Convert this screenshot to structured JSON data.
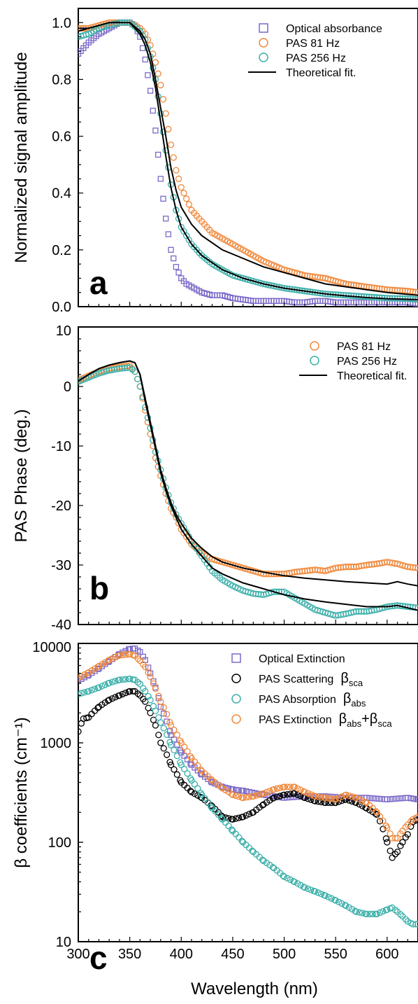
{
  "chart_data": [
    {
      "panel": "a",
      "type": "line",
      "ylabel": "Normalized signal amplitude",
      "xlim": [
        300,
        630
      ],
      "ylim": [
        0,
        1.05
      ],
      "yticks": [
        "0.0",
        "0.2",
        "0.4",
        "0.6",
        "0.8",
        "1.0"
      ],
      "legend": "top-right",
      "series": [
        {
          "name": "Optical absorbance",
          "marker": "square",
          "color": "#7b68c8",
          "x": [
            300,
            310,
            320,
            330,
            340,
            350,
            355,
            360,
            365,
            370,
            375,
            380,
            385,
            390,
            395,
            400,
            405,
            410,
            415,
            420,
            430,
            440,
            450,
            460,
            470,
            480,
            490,
            500,
            510,
            520,
            530,
            540,
            550,
            560,
            570,
            580,
            590,
            600,
            610,
            620,
            630
          ],
          "y": [
            0.89,
            0.93,
            0.96,
            0.98,
            1.0,
            1.0,
            0.99,
            0.95,
            0.87,
            0.76,
            0.62,
            0.45,
            0.31,
            0.2,
            0.14,
            0.1,
            0.08,
            0.07,
            0.06,
            0.05,
            0.04,
            0.04,
            0.03,
            0.025,
            0.02,
            0.02,
            0.02,
            0.02,
            0.015,
            0.015,
            0.02,
            0.02,
            0.015,
            0.015,
            0.015,
            0.015,
            0.015,
            0.015,
            0.015,
            0.015,
            0.01
          ]
        },
        {
          "name": "PAS   81 Hz",
          "marker": "circle",
          "color": "#f0883a",
          "x": [
            300,
            310,
            320,
            330,
            340,
            350,
            360,
            365,
            370,
            375,
            380,
            385,
            390,
            395,
            400,
            410,
            420,
            430,
            440,
            450,
            460,
            480,
            500,
            520,
            540,
            560,
            580,
            600,
            620,
            630
          ],
          "y": [
            0.98,
            0.98,
            0.99,
            1.0,
            1.0,
            1.0,
            0.98,
            0.96,
            0.92,
            0.86,
            0.78,
            0.68,
            0.57,
            0.48,
            0.42,
            0.34,
            0.3,
            0.26,
            0.24,
            0.22,
            0.2,
            0.16,
            0.13,
            0.11,
            0.1,
            0.08,
            0.07,
            0.06,
            0.055,
            0.05
          ]
        },
        {
          "name": "PAS 256 Hz",
          "marker": "circle",
          "color": "#3aafa9",
          "x": [
            300,
            310,
            320,
            330,
            340,
            350,
            360,
            365,
            370,
            375,
            380,
            385,
            390,
            395,
            400,
            410,
            420,
            430,
            440,
            450,
            460,
            480,
            500,
            520,
            540,
            560,
            580,
            600,
            620,
            630
          ],
          "y": [
            0.95,
            0.96,
            0.98,
            0.99,
            1.0,
            1.0,
            0.97,
            0.94,
            0.88,
            0.8,
            0.68,
            0.55,
            0.43,
            0.34,
            0.28,
            0.22,
            0.18,
            0.15,
            0.13,
            0.11,
            0.1,
            0.08,
            0.065,
            0.055,
            0.045,
            0.04,
            0.035,
            0.03,
            0.028,
            0.025
          ]
        },
        {
          "name": "Theoretical fit.",
          "marker": "line",
          "color": "#000000",
          "x": [
            300,
            310,
            320,
            330,
            340,
            350,
            360,
            365,
            370,
            375,
            380,
            385,
            390,
            395,
            400,
            410,
            420,
            440,
            460,
            480,
            500,
            520,
            540,
            560,
            580,
            600,
            630
          ],
          "y": [
            0.98,
            0.98,
            0.99,
            1.0,
            1.0,
            1.0,
            0.97,
            0.94,
            0.89,
            0.8,
            0.7,
            0.6,
            0.49,
            0.41,
            0.35,
            0.29,
            0.25,
            0.2,
            0.17,
            0.14,
            0.12,
            0.1,
            0.08,
            0.07,
            0.06,
            0.05,
            0.04
          ]
        },
        {
          "name": "",
          "marker": "line",
          "color": "#000000",
          "x": [
            300,
            310,
            320,
            330,
            340,
            350,
            360,
            365,
            370,
            375,
            380,
            385,
            390,
            395,
            400,
            410,
            420,
            440,
            460,
            480,
            500,
            520,
            540,
            560,
            580,
            600,
            630
          ],
          "y": [
            0.97,
            0.98,
            0.99,
            1.0,
            1.0,
            1.0,
            0.96,
            0.92,
            0.86,
            0.77,
            0.65,
            0.53,
            0.42,
            0.34,
            0.28,
            0.22,
            0.18,
            0.13,
            0.1,
            0.08,
            0.065,
            0.055,
            0.045,
            0.038,
            0.032,
            0.028,
            0.025
          ]
        }
      ]
    },
    {
      "panel": "b",
      "type": "line",
      "ylabel": "PAS Phase (deg.)",
      "xlim": [
        300,
        630
      ],
      "ylim": [
        -40,
        10
      ],
      "yticks": [
        "-40",
        "-30",
        "-20",
        "-10",
        "0",
        "10"
      ],
      "legend": "top-right",
      "series": [
        {
          "name": "PAS   81 Hz",
          "marker": "circle",
          "color": "#f0883a",
          "x": [
            300,
            310,
            320,
            330,
            340,
            350,
            355,
            360,
            365,
            370,
            375,
            380,
            385,
            390,
            395,
            400,
            410,
            420,
            430,
            440,
            450,
            460,
            470,
            480,
            490,
            500,
            510,
            520,
            530,
            540,
            550,
            560,
            570,
            580,
            590,
            600,
            610,
            620,
            630
          ],
          "y": [
            1,
            1.8,
            2.5,
            3,
            3.3,
            3.5,
            2.5,
            0,
            -4,
            -8,
            -12,
            -15,
            -18,
            -20.5,
            -22,
            -24,
            -26.5,
            -28,
            -29,
            -29.5,
            -30,
            -30.5,
            -31,
            -31.5,
            -31.5,
            -31.5,
            -31.2,
            -31,
            -30.8,
            -31,
            -30.5,
            -30.3,
            -30.3,
            -30,
            -29.8,
            -29.5,
            -29.8,
            -30.3,
            -30.5
          ]
        },
        {
          "name": "PAS 256 Hz",
          "marker": "circle",
          "color": "#3aafa9",
          "x": [
            300,
            310,
            320,
            330,
            340,
            350,
            355,
            360,
            365,
            370,
            375,
            380,
            385,
            390,
            395,
            400,
            410,
            420,
            430,
            440,
            450,
            460,
            470,
            480,
            490,
            500,
            510,
            520,
            530,
            540,
            550,
            560,
            570,
            580,
            590,
            600,
            610,
            620,
            630
          ],
          "y": [
            0.8,
            1.5,
            2.2,
            2.7,
            3,
            3.2,
            2.5,
            0,
            -3.5,
            -7,
            -11,
            -14,
            -17,
            -19.5,
            -21.5,
            -23,
            -26,
            -28.5,
            -31,
            -32.5,
            -33.5,
            -34.3,
            -34.8,
            -35,
            -34.5,
            -34.5,
            -35.5,
            -36.5,
            -37.5,
            -38,
            -38.5,
            -38.2,
            -37.8,
            -37.8,
            -37.5,
            -37,
            -36.8,
            -37,
            -37.2
          ]
        },
        {
          "name": "Theoretical fit.",
          "marker": "line",
          "color": "#000000",
          "x": [
            300,
            310,
            320,
            330,
            340,
            350,
            355,
            360,
            365,
            370,
            375,
            380,
            385,
            390,
            395,
            400,
            410,
            420,
            430,
            440,
            460,
            480,
            500,
            520,
            540,
            560,
            580,
            600,
            610,
            620,
            630
          ],
          "y": [
            0.9,
            2,
            3,
            3.6,
            4,
            4.3,
            4,
            2,
            -2,
            -6,
            -10,
            -14,
            -17,
            -19.5,
            -21.5,
            -23,
            -25.5,
            -27.2,
            -28.6,
            -29.5,
            -30.5,
            -31.2,
            -31.8,
            -32.2,
            -32.5,
            -32.8,
            -33,
            -33.2,
            -32.8,
            -33.2,
            -33.5
          ]
        },
        {
          "name": "",
          "marker": "line",
          "color": "#000000",
          "x": [
            300,
            310,
            320,
            330,
            340,
            350,
            355,
            360,
            365,
            370,
            375,
            380,
            385,
            390,
            395,
            400,
            410,
            420,
            430,
            440,
            460,
            480,
            500,
            520,
            540,
            560,
            580,
            600,
            610,
            620,
            630
          ],
          "y": [
            0.9,
            2,
            3,
            3.6,
            4,
            4.3,
            4,
            2,
            -2.5,
            -6.5,
            -10.5,
            -14.5,
            -17.5,
            -20,
            -22,
            -24,
            -26.5,
            -28.5,
            -30.5,
            -31.5,
            -33,
            -34,
            -35,
            -35.7,
            -36.2,
            -36.6,
            -37,
            -37,
            -36.8,
            -37.2,
            -37.6
          ]
        }
      ]
    },
    {
      "panel": "c",
      "type": "scatter",
      "xlabel": "Wavelength (nm)",
      "ylabel": "β coefficients  (cm⁻¹)",
      "xlim": [
        300,
        630
      ],
      "ylim": [
        10,
        10000
      ],
      "yscale": "log",
      "yticks": [
        "10",
        "100",
        "1000",
        "10000"
      ],
      "xticks": [
        "300",
        "350",
        "400",
        "450",
        "500",
        "550",
        "600"
      ],
      "legend": "top-right",
      "legend_labels": [
        {
          "main": "Optical Extinction"
        },
        {
          "main": "PAS Scattering",
          "symbol": "β",
          "sub": "sca"
        },
        {
          "main": "PAS Absorption",
          "symbol": "β",
          "sub": "abs"
        },
        {
          "main": "PAS Extinction",
          "symbol": "β",
          "sub": "abs",
          "plus_symbol": "+β",
          "plus_sub": "sca"
        }
      ],
      "series": [
        {
          "name": "Optical Extinction",
          "marker": "square",
          "color": "#7b68c8",
          "x": [
            300,
            310,
            320,
            330,
            340,
            350,
            355,
            360,
            365,
            370,
            375,
            380,
            390,
            400,
            410,
            420,
            430,
            440,
            450,
            460,
            480,
            500,
            520,
            540,
            560,
            580,
            600,
            620,
            630
          ],
          "y": [
            4200,
            4800,
            5600,
            6600,
            7800,
            8800,
            8900,
            8200,
            6800,
            5000,
            3600,
            2300,
            1200,
            800,
            600,
            480,
            400,
            360,
            340,
            330,
            300,
            280,
            290,
            290,
            280,
            280,
            270,
            280,
            270
          ]
        },
        {
          "name": "PAS Scattering βsca",
          "marker": "circle",
          "color": "#000000",
          "x": [
            300,
            305,
            310,
            320,
            330,
            340,
            350,
            355,
            360,
            365,
            370,
            375,
            380,
            390,
            400,
            410,
            420,
            430,
            440,
            450,
            460,
            470,
            480,
            490,
            500,
            510,
            520,
            530,
            540,
            550,
            560,
            570,
            580,
            590,
            600,
            605,
            610,
            615,
            620,
            625,
            630
          ],
          "y": [
            1300,
            1750,
            1800,
            2300,
            2700,
            3000,
            3300,
            3300,
            3000,
            2600,
            2000,
            1500,
            1000,
            600,
            400,
            320,
            280,
            230,
            180,
            170,
            180,
            200,
            240,
            280,
            300,
            310,
            280,
            260,
            250,
            250,
            270,
            250,
            220,
            190,
            100,
            70,
            80,
            100,
            120,
            160,
            170
          ]
        },
        {
          "name": "PAS Absorption βabs",
          "marker": "circle",
          "color": "#3aafa9",
          "x": [
            300,
            310,
            320,
            330,
            340,
            350,
            355,
            360,
            365,
            370,
            375,
            380,
            390,
            400,
            410,
            420,
            430,
            440,
            450,
            460,
            470,
            480,
            490,
            500,
            510,
            520,
            530,
            540,
            550,
            560,
            570,
            580,
            590,
            600,
            605,
            610,
            615,
            620,
            625,
            630
          ],
          "y": [
            3100,
            3300,
            3600,
            4000,
            4300,
            4400,
            4300,
            3900,
            3300,
            2700,
            2100,
            1600,
            950,
            600,
            420,
            300,
            220,
            170,
            130,
            100,
            80,
            65,
            55,
            45,
            40,
            35,
            32,
            29,
            26,
            23,
            20,
            19,
            19,
            21,
            22,
            20,
            18,
            16,
            15,
            15
          ]
        },
        {
          "name": "PAS Extinction βabs+βsca",
          "marker": "circle",
          "color": "#f0883a",
          "x": [
            300,
            310,
            320,
            330,
            340,
            350,
            355,
            360,
            365,
            370,
            375,
            380,
            390,
            400,
            410,
            420,
            430,
            440,
            450,
            460,
            470,
            480,
            490,
            500,
            510,
            520,
            530,
            540,
            550,
            560,
            570,
            580,
            590,
            600,
            605,
            610,
            615,
            620,
            625,
            630
          ],
          "y": [
            4500,
            5100,
            5900,
            6800,
            7600,
            7800,
            7500,
            6700,
            5800,
            4600,
            3500,
            2600,
            1500,
            1000,
            700,
            520,
            420,
            350,
            300,
            280,
            290,
            310,
            340,
            360,
            360,
            320,
            290,
            280,
            270,
            300,
            280,
            250,
            200,
            140,
            110,
            110,
            130,
            150,
            170,
            180
          ]
        }
      ]
    }
  ]
}
